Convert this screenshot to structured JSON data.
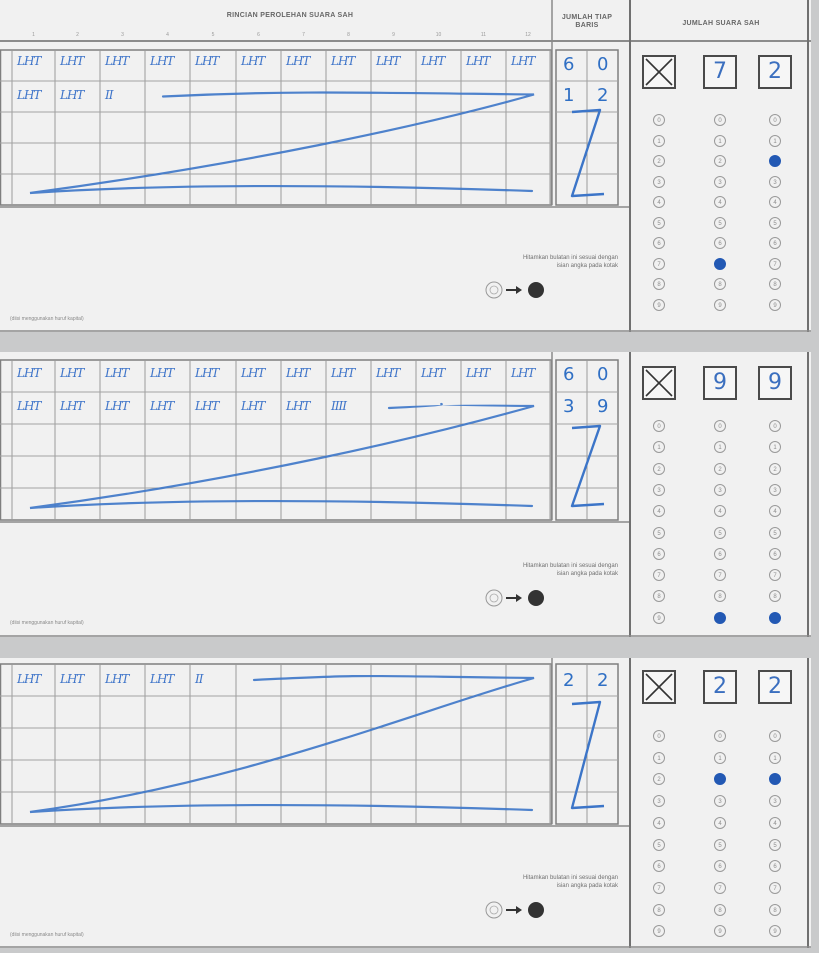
{
  "header": {
    "title": "RINCIAN PEROLEHAN SUARA SAH",
    "count_label": "JUMLAH TIAP BARIS",
    "total_label": "JUMLAH SUARA SAH",
    "columns": [
      "1",
      "2",
      "3",
      "4",
      "5",
      "6",
      "7",
      "8",
      "9",
      "10",
      "11",
      "12"
    ]
  },
  "instruction": {
    "line1": "Hitamkan bulatan ini sesuai dengan",
    "line2": "isian angka pada kotak"
  },
  "footer_note": "(diisi menggunakan huruf kapital)",
  "sections": [
    {
      "tally_rows": [
        [
          "LHT",
          "LHT",
          "LHT",
          "LHT",
          "LHT",
          "LHT",
          "LHT",
          "LHT",
          "LHT",
          "LHT",
          "LHT",
          "LHT"
        ],
        [
          "LHT",
          "LHT",
          "II"
        ]
      ],
      "row_counts": [
        [
          "6",
          "0"
        ],
        [
          "1",
          "2"
        ]
      ],
      "z_mark": "Z",
      "total_digits": [
        "",
        "7",
        "2"
      ],
      "filled": [
        null,
        7,
        2
      ]
    },
    {
      "tally_rows": [
        [
          "LHT",
          "LHT",
          "LHT",
          "LHT",
          "LHT",
          "LHT",
          "LHT",
          "LHT",
          "LHT",
          "LHT",
          "LHT",
          "LHT"
        ],
        [
          "LHT",
          "LHT",
          "LHT",
          "LHT",
          "LHT",
          "LHT",
          "LHT",
          "IIII"
        ]
      ],
      "row_counts": [
        [
          "6",
          "0"
        ],
        [
          "3",
          "9"
        ]
      ],
      "z_mark": "Z",
      "total_digits": [
        "",
        "9",
        "9"
      ],
      "filled": [
        null,
        9,
        9
      ]
    },
    {
      "tally_rows": [
        [
          "LHT",
          "LHT",
          "LHT",
          "LHT",
          "II"
        ]
      ],
      "row_counts": [
        [
          "2",
          "2"
        ]
      ],
      "z_mark": "Z",
      "total_digits": [
        "",
        "2",
        "2"
      ],
      "filled": [
        null,
        2,
        2
      ]
    }
  ],
  "bubble_labels": [
    "0",
    "1",
    "2",
    "3",
    "4",
    "5",
    "6",
    "7",
    "8",
    "9"
  ]
}
